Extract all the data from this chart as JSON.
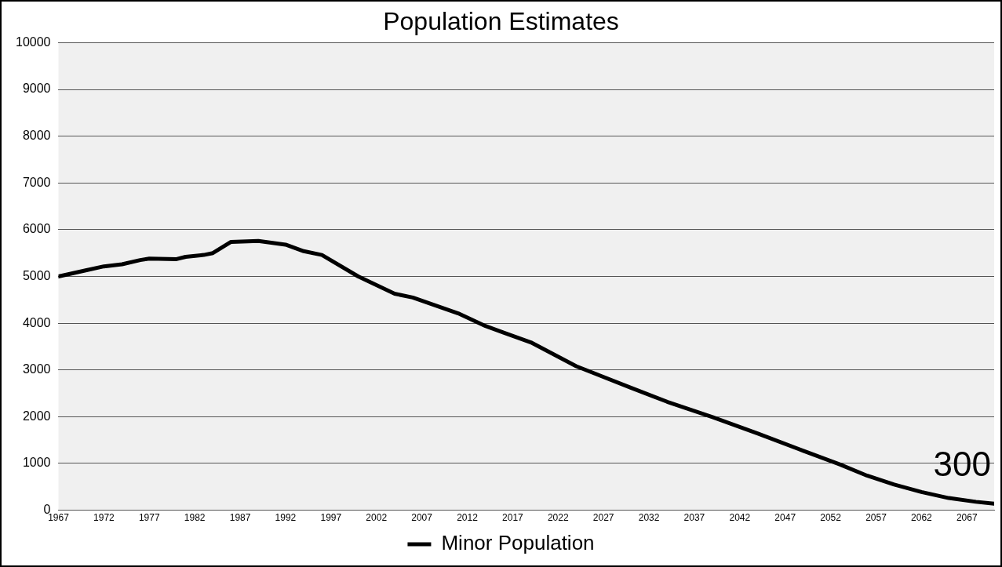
{
  "chart_data": {
    "type": "line",
    "title": "Population Estimates",
    "x": [
      1967,
      1970,
      1972,
      1974,
      1976,
      1977,
      1980,
      1981,
      1983,
      1984,
      1986,
      1989,
      1992,
      1994,
      1996,
      2000,
      2004,
      2006,
      2011,
      2014,
      2016,
      2019,
      2024,
      2030,
      2034,
      2039,
      2044,
      2049,
      2053,
      2056,
      2059,
      2062,
      2065,
      2068,
      2070
    ],
    "series": [
      {
        "name": "Minor Population",
        "color": "#000000",
        "values": [
          5000,
          5130,
          5215,
          5260,
          5350,
          5380,
          5370,
          5420,
          5460,
          5500,
          5740,
          5760,
          5680,
          5540,
          5460,
          5000,
          4630,
          4550,
          4210,
          3940,
          3800,
          3590,
          3080,
          2620,
          2320,
          1990,
          1640,
          1270,
          980,
          740,
          550,
          390,
          260,
          180,
          140
        ]
      }
    ],
    "xlim": [
      1967,
      2070
    ],
    "xticks": [
      1967,
      1972,
      1977,
      1982,
      1987,
      1992,
      1997,
      2002,
      2007,
      2012,
      2017,
      2022,
      2027,
      2032,
      2037,
      2042,
      2047,
      2052,
      2057,
      2062,
      2067
    ],
    "ylim": [
      0,
      10000
    ],
    "yticks": [
      0,
      1000,
      2000,
      3000,
      4000,
      5000,
      6000,
      7000,
      8000,
      9000,
      10000
    ],
    "grid": "y",
    "legend": "bottom",
    "marker": "none",
    "line_style": "solid",
    "annotations": [
      "300"
    ]
  }
}
